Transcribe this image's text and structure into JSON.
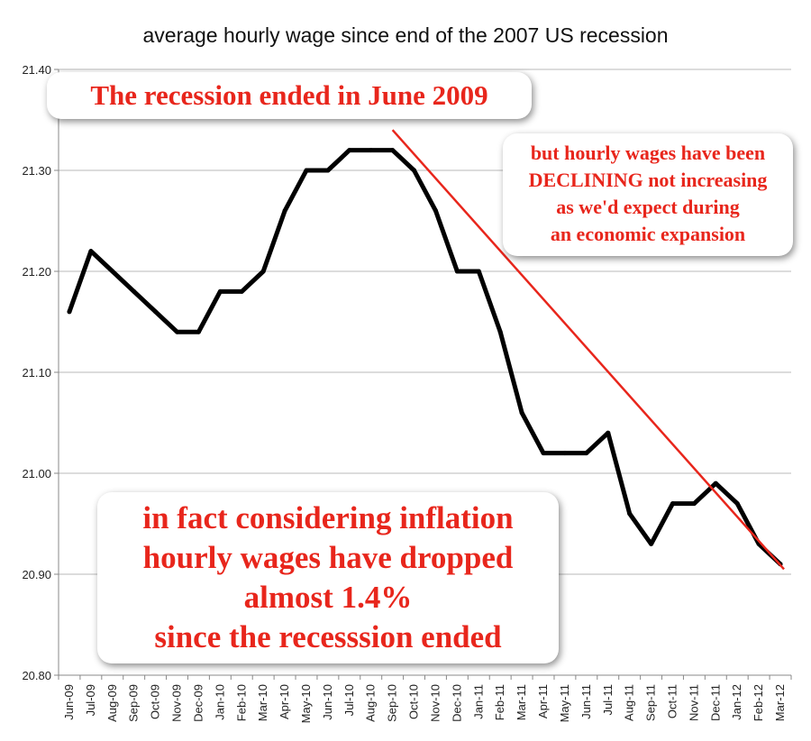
{
  "chart_data": {
    "type": "line",
    "title": "average hourly wage since end of the 2007 US recession",
    "xlabel": "",
    "ylabel": "",
    "categories": [
      "Jun-09",
      "Jul-09",
      "Aug-09",
      "Sep-09",
      "Oct-09",
      "Nov-09",
      "Dec-09",
      "Jan-10",
      "Feb-10",
      "Mar-10",
      "Apr-10",
      "May-10",
      "Jun-10",
      "Jul-10",
      "Aug-10",
      "Sep-10",
      "Oct-10",
      "Nov-10",
      "Dec-10",
      "Jan-11",
      "Feb-11",
      "Mar-11",
      "Apr-11",
      "May-11",
      "Jun-11",
      "Jul-11",
      "Aug-11",
      "Sep-11",
      "Oct-11",
      "Nov-11",
      "Dec-11",
      "Jan-12",
      "Feb-12",
      "Mar-12"
    ],
    "series": [
      {
        "values": [
          21.16,
          21.22,
          21.2,
          21.18,
          21.16,
          21.14,
          21.14,
          21.18,
          21.18,
          21.2,
          21.26,
          21.3,
          21.3,
          21.32,
          21.32,
          21.32,
          21.3,
          21.26,
          21.2,
          21.2,
          21.14,
          21.06,
          21.02,
          21.02,
          21.02,
          21.04,
          20.96,
          20.93,
          20.97,
          20.97,
          20.99,
          20.97,
          20.93,
          20.91
        ],
        "color": "#000000"
      }
    ],
    "trendline": {
      "from": {
        "x": "Sep-10",
        "y": 21.34
      },
      "to": {
        "x": "Mar-12",
        "y": 20.905
      },
      "color": "#e8261c"
    },
    "ylim": [
      20.8,
      21.4
    ],
    "yticks": [
      "21.40",
      "21.30",
      "21.20",
      "21.10",
      "21.00",
      "20.90",
      "20.80"
    ],
    "grid": true,
    "legend": "none"
  },
  "annotations": {
    "recession_end": [
      "The recession ended in June 2009"
    ],
    "declining": [
      "but hourly wages have been",
      "DECLINING not increasing",
      "as we'd expect during",
      "an economic expansion"
    ],
    "inflation": [
      "in fact considering inflation",
      "hourly wages have dropped",
      "almost 1.4%",
      "since the recesssion ended"
    ]
  },
  "colors": {
    "annotation_text": "#e8261c",
    "grid": "#b8b8b8",
    "axis": "#888888"
  }
}
